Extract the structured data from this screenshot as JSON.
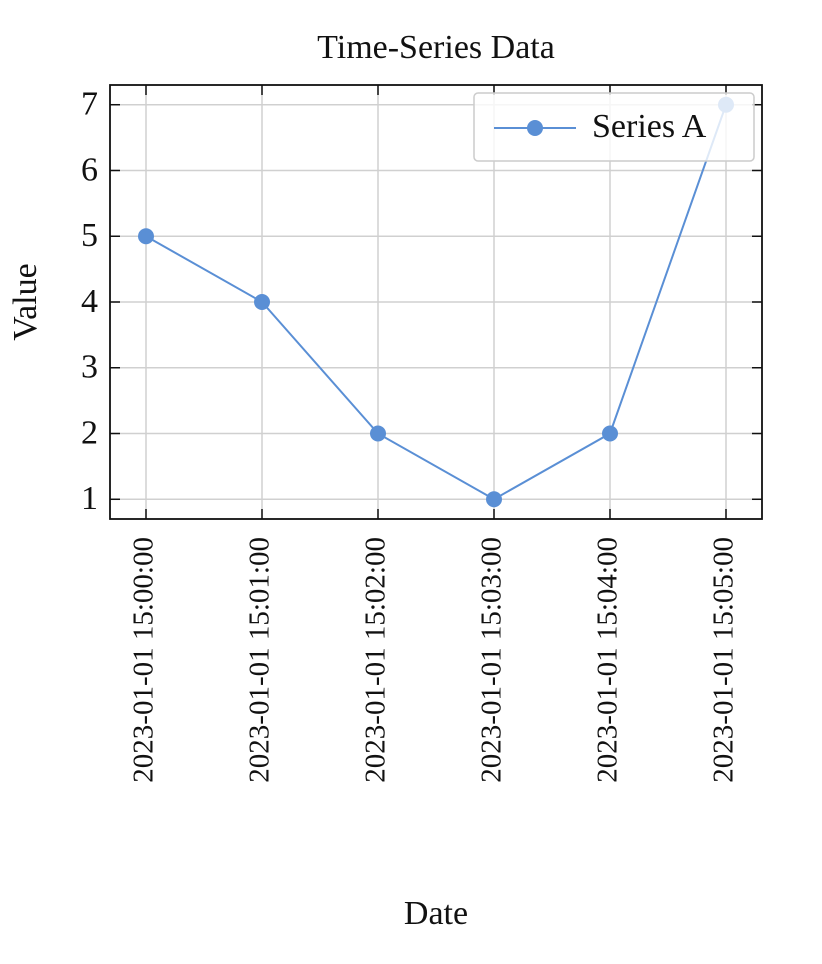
{
  "chart_data": {
    "type": "line",
    "title": "Time-Series Data",
    "x_label": "Date",
    "y_label": "Value",
    "x": [
      "2023-01-01 15:00:00",
      "2023-01-01 15:01:00",
      "2023-01-01 15:02:00",
      "2023-01-01 15:03:00",
      "2023-01-01 15:04:00",
      "2023-01-01 15:05:00"
    ],
    "series": [
      {
        "name": "Series A",
        "color": "#5a8fd5",
        "values": [
          5,
          4,
          2,
          1,
          2,
          7
        ]
      }
    ],
    "ylim": [
      0.7,
      7.3
    ],
    "yticks": [
      1,
      2,
      3,
      4,
      5,
      6,
      7
    ],
    "grid": true,
    "legend": "upper right"
  }
}
